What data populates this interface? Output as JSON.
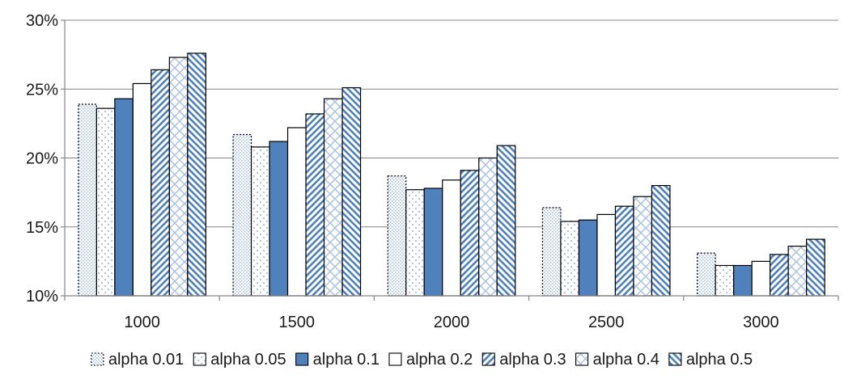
{
  "chart_data": {
    "type": "bar",
    "categories": [
      "1000",
      "1500",
      "2000",
      "2500",
      "3000"
    ],
    "y_tick_labels": [
      "10%",
      "15%",
      "20%",
      "25%",
      "30%"
    ],
    "ylim": [
      10,
      30
    ],
    "y_unit": "%",
    "grid": true,
    "legend_position": "bottom",
    "series": [
      {
        "name": "alpha 0.01",
        "pattern": "dots-fine",
        "values": [
          23.9,
          21.7,
          18.7,
          16.4,
          13.1
        ]
      },
      {
        "name": "alpha 0.05",
        "pattern": "dots-sparse",
        "values": [
          23.6,
          20.8,
          17.7,
          15.4,
          12.2
        ]
      },
      {
        "name": "alpha 0.1",
        "pattern": "solid",
        "values": [
          24.3,
          21.2,
          17.8,
          15.5,
          12.2
        ]
      },
      {
        "name": "alpha 0.2",
        "pattern": "empty",
        "values": [
          25.4,
          22.2,
          18.4,
          15.9,
          12.5
        ]
      },
      {
        "name": "alpha 0.3",
        "pattern": "diag-up",
        "values": [
          26.4,
          23.2,
          19.1,
          16.5,
          13.0
        ]
      },
      {
        "name": "alpha 0.4",
        "pattern": "cross",
        "values": [
          27.3,
          24.3,
          20.0,
          17.2,
          13.6
        ]
      },
      {
        "name": "alpha 0.5",
        "pattern": "diag-down",
        "values": [
          27.6,
          25.1,
          20.9,
          18.0,
          14.1
        ]
      }
    ],
    "colors": {
      "accent": "#4f81bd",
      "light": "#a8c0e0",
      "grid": "#868686",
      "border": "#000000"
    }
  }
}
